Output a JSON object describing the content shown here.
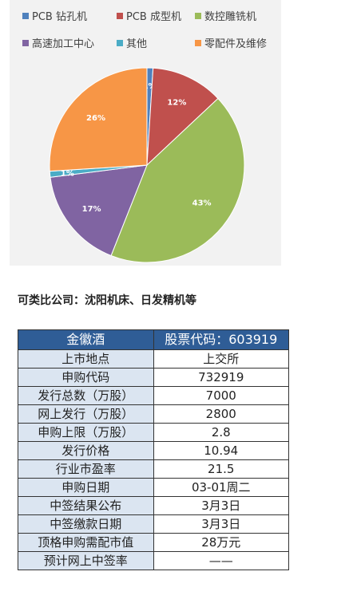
{
  "chart_data": {
    "type": "pie",
    "categories": [
      "PCB钻孔机",
      "PCB成型机",
      "数控雕铣机",
      "高速加工中心",
      "其他",
      "零配件及维修"
    ],
    "values": [
      1,
      12,
      43,
      17,
      1,
      26
    ],
    "labels": [
      "1%",
      "12%",
      "43%",
      "17%",
      "1%",
      "26%"
    ],
    "legend_labels": [
      "PCB 钻孔机",
      "PCB 成型机",
      "数控雕铣机",
      "高速加工中心",
      "其他",
      "零配件及维修"
    ],
    "colors": [
      "#4f81bd",
      "#c0504d",
      "#9bbb59",
      "#8064a2",
      "#4bacc6",
      "#f79646"
    ],
    "legend_position": "top"
  },
  "note": "可类比公司：沈阳机床、日发精机等",
  "ipo_table": {
    "header_name": "金徽酒",
    "header_code": "股票代码：603919",
    "rows": [
      {
        "label": "上市地点",
        "value": "上交所"
      },
      {
        "label": "申购代码",
        "value": "732919"
      },
      {
        "label": "发行总数（万股）",
        "value": "7000"
      },
      {
        "label": "网上发行（万股）",
        "value": "2800"
      },
      {
        "label": "申购上限（万股）",
        "value": "2.8"
      },
      {
        "label": "发行价格",
        "value": "10.94"
      },
      {
        "label": "行业市盈率",
        "value": "21.5"
      },
      {
        "label": "申购日期",
        "value": "03-01周二"
      },
      {
        "label": "中签结果公布",
        "value": "3月3日"
      },
      {
        "label": "中签缴款日期",
        "value": "3月3日"
      },
      {
        "label": "顶格申购需配市值",
        "value": "28万元"
      },
      {
        "label": "预计网上中签率",
        "value": "——"
      }
    ]
  }
}
